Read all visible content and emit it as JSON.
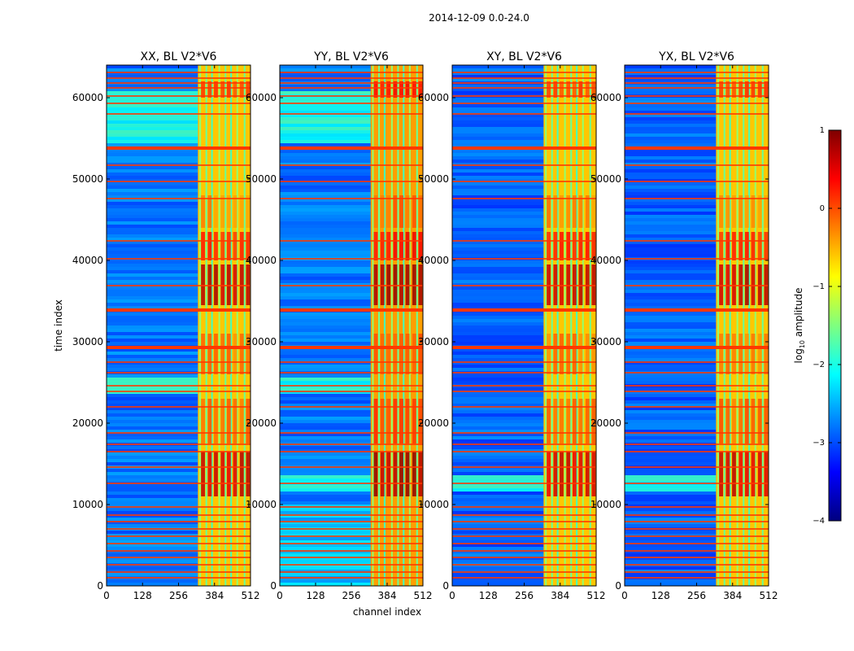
{
  "figure_title": "2014-12-09 0.0-24.0",
  "shared_ylabel": "time index",
  "shared_xlabel": "channel index",
  "colorbar": {
    "label": "log10 amplitude",
    "label_main": "log",
    "label_sub": "10",
    "label_tail": " amplitude",
    "min": -4,
    "max": 1,
    "ticks": [
      "1",
      "0",
      "−1",
      "−2",
      "−3",
      "−4"
    ],
    "tick_values": [
      1,
      0,
      -1,
      -2,
      -3,
      -4
    ],
    "colors": [
      "#00007f",
      "#0000ff",
      "#007fff",
      "#00ffff",
      "#7fff7f",
      "#ffff00",
      "#ff7f00",
      "#ff0000",
      "#7f0000"
    ]
  },
  "chart_data": [
    {
      "type": "heatmap",
      "title": "XX, BL V2*V6",
      "xlabel": "channel index",
      "ylabel": "time index",
      "xlim": [
        0,
        512
      ],
      "ylim": [
        0,
        64000
      ],
      "xticks": [
        0,
        128,
        256,
        384,
        512
      ],
      "yticks": [
        0,
        10000,
        20000,
        30000,
        40000,
        50000,
        60000
      ],
      "yticklabels": [
        "0",
        "10000",
        "20000",
        "30000",
        "40000",
        "50000",
        "60000"
      ],
      "value_label": "log10 amplitude",
      "band_channels": [
        325,
        512
      ],
      "background_log_amp": -2.8,
      "band_log_amp": -0.6
    },
    {
      "type": "heatmap",
      "title": "YY, BL V2*V6",
      "xlabel": "channel index",
      "ylabel": "time index",
      "xlim": [
        0,
        512
      ],
      "ylim": [
        0,
        64000
      ],
      "xticks": [
        0,
        128,
        256,
        384,
        512
      ],
      "yticks": [
        0,
        10000,
        20000,
        30000,
        40000,
        50000,
        60000
      ],
      "yticklabels": [
        "0",
        "10000",
        "20000",
        "30000",
        "40000",
        "50000",
        "60000"
      ],
      "value_label": "log10 amplitude",
      "band_channels": [
        325,
        512
      ],
      "background_log_amp": -2.8,
      "band_log_amp": -0.4
    },
    {
      "type": "heatmap",
      "title": "XY, BL V2*V6",
      "xlabel": "channel index",
      "ylabel": "time index",
      "xlim": [
        0,
        512
      ],
      "ylim": [
        0,
        64000
      ],
      "xticks": [
        0,
        128,
        256,
        384,
        512
      ],
      "yticks": [
        0,
        10000,
        20000,
        30000,
        40000,
        50000,
        60000
      ],
      "yticklabels": [
        "0",
        "10000",
        "20000",
        "30000",
        "40000",
        "50000",
        "60000"
      ],
      "value_label": "log10 amplitude",
      "band_channels": [
        325,
        512
      ],
      "background_log_amp": -2.9,
      "band_log_amp": -0.6
    },
    {
      "type": "heatmap",
      "title": "YX, BL V2*V6",
      "xlabel": "channel index",
      "ylabel": "time index",
      "xlim": [
        0,
        512
      ],
      "ylim": [
        0,
        64000
      ],
      "xticks": [
        0,
        128,
        256,
        384,
        512
      ],
      "yticks": [
        0,
        10000,
        20000,
        30000,
        40000,
        50000,
        60000
      ],
      "yticklabels": [
        "0",
        "10000",
        "20000",
        "30000",
        "40000",
        "50000",
        "60000"
      ],
      "value_label": "log10 amplitude",
      "band_channels": [
        325,
        512
      ],
      "background_log_amp": -2.9,
      "band_log_amp": -0.6
    }
  ]
}
